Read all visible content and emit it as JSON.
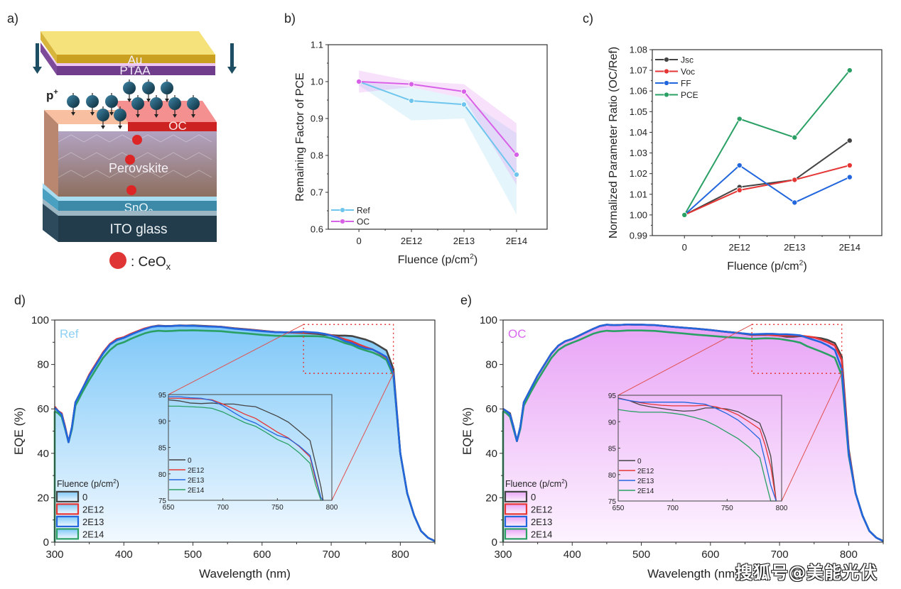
{
  "panels": {
    "a": {
      "label": "a)",
      "layers": {
        "au": "Au",
        "ptaa": "PTAA",
        "oc": "OC",
        "perovskite": "Perovskite",
        "sno2": "SnO",
        "sno2_sub": "2",
        "ito": "ITO glass"
      },
      "particle_label": "p",
      "particle_sup": "+",
      "legend_text": ": CeO",
      "legend_sub": "x",
      "colors": {
        "au": "#d4aa2a",
        "ptaa": "#6f3d8c",
        "oc": "#cc2222",
        "perovskite": "#8e7d8f",
        "sno2": "#3d8aa8",
        "ito": "#233c4c",
        "particle": "#1d4e63",
        "ceox": "#e03030"
      }
    },
    "b": {
      "label": "b)"
    },
    "c": {
      "label": "c)"
    },
    "d": {
      "label": "d)"
    },
    "e": {
      "label": "e)"
    }
  },
  "watermark": "搜狐号@美能光伏",
  "chart_data": [
    {
      "id": "b",
      "type": "line",
      "title": "",
      "xlabel": "Fluence (p/cm²)",
      "ylabel": "Remaining Factor of PCE",
      "categories": [
        "0",
        "2E12",
        "2E13",
        "2E14"
      ],
      "ylim": [
        0.6,
        1.1
      ],
      "yticks": [
        0.6,
        0.7,
        0.8,
        0.9,
        1.0,
        1.1
      ],
      "ytick_labels": [
        "0.6",
        "0.7",
        "0.8",
        "0.9",
        "1.0",
        "1.1"
      ],
      "legend": "bottom-left",
      "series": [
        {
          "name": "Ref",
          "color": "#6ec6ee",
          "values": [
            1.0,
            0.948,
            0.938,
            0.748
          ],
          "band_low": [
            0.99,
            0.895,
            0.9,
            0.64
          ],
          "band_high": [
            1.0,
            0.985,
            0.955,
            0.86
          ]
        },
        {
          "name": "OC",
          "color": "#d860e8",
          "values": [
            1.0,
            0.993,
            0.973,
            0.802
          ],
          "band_low": [
            0.97,
            0.985,
            0.955,
            0.72
          ],
          "band_high": [
            1.03,
            1.002,
            0.993,
            0.887
          ]
        }
      ]
    },
    {
      "id": "c",
      "type": "line",
      "title": "",
      "xlabel": "Fluence (p/cm²)",
      "ylabel": "Normalized Parameter Ratio (OC/Ref)",
      "categories": [
        "0",
        "2E12",
        "2E13",
        "2E14"
      ],
      "ylim": [
        0.99,
        1.08
      ],
      "yticks": [
        0.99,
        1.0,
        1.01,
        1.02,
        1.03,
        1.04,
        1.05,
        1.06,
        1.07,
        1.08
      ],
      "ytick_labels": [
        "0.99",
        "1.00",
        "1.01",
        "1.02",
        "1.03",
        "1.04",
        "1.05",
        "1.06",
        "1.07",
        "1.08"
      ],
      "legend": "top-left",
      "series": [
        {
          "name": "Jsc",
          "color": "#444444",
          "values": [
            1.0,
            1.0135,
            1.017,
            1.036
          ]
        },
        {
          "name": "Voc",
          "color": "#e53535",
          "values": [
            1.0,
            1.012,
            1.017,
            1.024
          ]
        },
        {
          "name": "FF",
          "color": "#2266dd",
          "values": [
            1.0,
            1.024,
            1.006,
            1.0183
          ]
        },
        {
          "name": "PCE",
          "color": "#2aa065",
          "values": [
            1.0,
            1.0465,
            1.0375,
            1.07
          ]
        }
      ]
    },
    {
      "id": "d",
      "type": "area",
      "title": "Ref",
      "title_color": "#8fd0f5",
      "xlabel": "Wavelength (nm)",
      "ylabel": "EQE (%)",
      "xlim": [
        300,
        850
      ],
      "ylim": [
        0,
        100
      ],
      "xticks": [
        300,
        400,
        500,
        600,
        700,
        800
      ],
      "xtick_labels": [
        "300",
        "400",
        "500",
        "600",
        "700",
        "800"
      ],
      "yticks": [
        0,
        20,
        40,
        60,
        80,
        100
      ],
      "ytick_labels": [
        "0",
        "20",
        "40",
        "60",
        "80",
        "100"
      ],
      "fill_top": "#7ec8f8",
      "fill_bottom": "#f2f9ff",
      "legend_title": "Fluence (p/cm²)",
      "legend": "bottom-left",
      "x": [
        300,
        305,
        310,
        315,
        320,
        325,
        330,
        340,
        350,
        360,
        370,
        380,
        390,
        400,
        410,
        420,
        430,
        440,
        450,
        460,
        470,
        480,
        490,
        500,
        520,
        540,
        560,
        580,
        600,
        620,
        640,
        660,
        680,
        690,
        700,
        710,
        720,
        730,
        740,
        750,
        760,
        770,
        780,
        790,
        800,
        810,
        820,
        830,
        840,
        850
      ],
      "series": [
        {
          "name": "0",
          "color": "#444444",
          "values": [
            61,
            59,
            58,
            52,
            45,
            52,
            63,
            69,
            75,
            80,
            85,
            89,
            91,
            92,
            93.5,
            94.8,
            96,
            97,
            97.5,
            97.3,
            97.4,
            97.6,
            97.5,
            97.6,
            97.3,
            97,
            96.3,
            95.8,
            95.2,
            94.6,
            94.4,
            94.2,
            93.8,
            93.4,
            93.2,
            93,
            93,
            92.8,
            92,
            91.2,
            90,
            88.2,
            86.3,
            78,
            40,
            22,
            12,
            5,
            2,
            0.5
          ]
        },
        {
          "name": "2E12",
          "color": "#e53535",
          "values": [
            61,
            59,
            58,
            52,
            45,
            52,
            63,
            69,
            75.5,
            80.5,
            85.5,
            89.3,
            91.5,
            92.3,
            93.8,
            95,
            96.2,
            97,
            97.4,
            97.2,
            97.3,
            97.5,
            97.4,
            97.4,
            97.2,
            97,
            96.2,
            95.7,
            95.1,
            94.6,
            94.4,
            94.4,
            94.2,
            93.8,
            93.2,
            92.3,
            91.3,
            90.4,
            89,
            87.8,
            86.8,
            85,
            83,
            76,
            40,
            22,
            12,
            5,
            2,
            0.5
          ]
        },
        {
          "name": "2E13",
          "color": "#2266dd",
          "values": [
            60.5,
            59,
            57.5,
            51.5,
            45,
            52,
            63,
            69,
            75,
            80,
            85,
            89,
            91,
            92,
            93.4,
            94.7,
            95.9,
            96.9,
            97.3,
            97.2,
            97.3,
            97.5,
            97.4,
            97.4,
            97.1,
            96.9,
            96.1,
            95.6,
            95,
            94.5,
            94.5,
            94.7,
            94.3,
            93.8,
            93,
            92,
            90.5,
            89.6,
            88.2,
            87.2,
            86.7,
            85.2,
            83.4,
            76,
            40,
            22,
            12,
            5,
            2,
            0.5
          ]
        },
        {
          "name": "2E14",
          "color": "#2aa065",
          "values": [
            59,
            58,
            56.5,
            51,
            45,
            51,
            61.5,
            67.5,
            73,
            78,
            83,
            86.5,
            89,
            90,
            91.5,
            92.8,
            94,
            94.8,
            95.2,
            95,
            95.1,
            95.3,
            95.3,
            95.4,
            95.2,
            95,
            94.4,
            93.9,
            93.3,
            92.9,
            92.7,
            92.8,
            92.7,
            92.5,
            91.8,
            90.8,
            89.6,
            88.8,
            87.3,
            86.3,
            85.4,
            84,
            82,
            75,
            40,
            22,
            12,
            5,
            2,
            0.5
          ]
        }
      ],
      "zoom_box": {
        "x": [
          660,
          790
        ],
        "y": [
          76,
          98
        ]
      },
      "inset": {
        "xlim": [
          650,
          800
        ],
        "ylim": [
          75,
          95
        ],
        "xticks": [
          650,
          700,
          750,
          800
        ],
        "xtick_labels": [
          "650",
          "700",
          "750",
          "800"
        ],
        "yticks": [
          75,
          80,
          85,
          90,
          95
        ],
        "ytick_labels": [
          "75",
          "80",
          "85",
          "90",
          "95"
        ],
        "x": [
          650,
          660,
          670,
          680,
          690,
          700,
          710,
          720,
          730,
          740,
          750,
          760,
          770,
          780,
          785,
          790,
          792
        ],
        "series": [
          {
            "name": "0",
            "values": [
              94,
              93.8,
              93.4,
              93.3,
              93.4,
              93.2,
              93.2,
              92.9,
              92.7,
              91.8,
              90.9,
              89.8,
              88.1,
              86.3,
              82,
              77.5,
              75
            ]
          },
          {
            "name": "2E12",
            "values": [
              94.3,
              94.3,
              94.2,
              94.2,
              94,
              93.2,
              92.3,
              91.3,
              90.5,
              89.2,
              87.9,
              86.8,
              85.2,
              83.2,
              79,
              75.5,
              75
            ]
          },
          {
            "name": "2E13",
            "values": [
              94.6,
              94.6,
              94.4,
              94.3,
              93.9,
              92.9,
              91.6,
              90.4,
              89.6,
              88.4,
              87.3,
              86.7,
              85.3,
              83.5,
              79.5,
              75.5,
              75
            ]
          },
          {
            "name": "2E14",
            "values": [
              92.8,
              92.8,
              92.7,
              92.6,
              92.4,
              91.7,
              90.7,
              89.7,
              89,
              87.8,
              86.5,
              85.6,
              84,
              82,
              78,
              75,
              75
            ]
          }
        ]
      }
    },
    {
      "id": "e",
      "type": "area",
      "title": "OC",
      "title_color": "#d868ee",
      "xlabel": "Wavelength (nm)",
      "ylabel": "EQE (%)",
      "xlim": [
        300,
        850
      ],
      "ylim": [
        0,
        100
      ],
      "xticks": [
        300,
        400,
        500,
        600,
        700,
        800
      ],
      "xtick_labels": [
        "300",
        "400",
        "500",
        "600",
        "700",
        "800"
      ],
      "yticks": [
        0,
        20,
        40,
        60,
        80,
        100
      ],
      "ytick_labels": [
        "0",
        "20",
        "40",
        "60",
        "80",
        "100"
      ],
      "fill_top": "#e8a4f6",
      "fill_bottom": "#fdf3ff",
      "legend_title": "Fluence (p/cm²)",
      "legend": "bottom-left",
      "x": [
        300,
        305,
        310,
        315,
        320,
        325,
        330,
        340,
        350,
        360,
        370,
        380,
        390,
        400,
        410,
        420,
        430,
        440,
        450,
        460,
        470,
        480,
        490,
        500,
        520,
        540,
        560,
        580,
        600,
        620,
        640,
        660,
        680,
        690,
        700,
        710,
        720,
        730,
        740,
        750,
        760,
        770,
        780,
        790,
        800,
        810,
        820,
        830,
        840,
        850
      ],
      "series": [
        {
          "name": "0",
          "color": "#444444",
          "values": [
            60,
            59,
            58,
            52,
            45.5,
            52,
            63,
            69,
            75,
            80,
            85,
            88.5,
            90.5,
            91.5,
            93,
            94.5,
            96,
            97.3,
            97.9,
            97.7,
            97.8,
            98,
            97.9,
            97.9,
            97.7,
            97.1,
            96.6,
            96.1,
            95.5,
            94.8,
            94.2,
            93.3,
            93.4,
            93.3,
            93,
            92.5,
            92.5,
            92.8,
            92.5,
            92.2,
            91.8,
            91,
            89.6,
            83.5,
            42,
            22,
            12,
            5,
            2,
            0.5
          ]
        },
        {
          "name": "2E12",
          "color": "#e53535",
          "values": [
            60,
            59,
            57.5,
            52,
            45.5,
            52,
            63,
            69,
            75,
            80,
            85,
            88.5,
            90.5,
            91.5,
            93,
            94.5,
            96,
            97.3,
            97.9,
            97.7,
            97.8,
            98,
            97.9,
            97.9,
            97.7,
            97.1,
            96.6,
            96.1,
            95.5,
            94.8,
            94.2,
            93.5,
            93.5,
            93.2,
            93,
            93,
            93,
            93,
            92.6,
            92.2,
            91.2,
            90,
            88.5,
            82,
            41,
            22,
            12,
            5,
            2,
            0.5
          ]
        },
        {
          "name": "2E13",
          "color": "#2266dd",
          "values": [
            60,
            59,
            57.5,
            52,
            45.5,
            52,
            63,
            69,
            75,
            80,
            85,
            88.5,
            90.5,
            91.5,
            93,
            94.5,
            96,
            97.3,
            97.9,
            97.7,
            97.8,
            98,
            97.9,
            97.9,
            97.7,
            97.1,
            96.6,
            96.1,
            95.5,
            94.8,
            94.2,
            93.6,
            93.8,
            93.8,
            93.6,
            93.6,
            93.4,
            93.1,
            92,
            91,
            90,
            88.5,
            86.5,
            78,
            40,
            22,
            12,
            5,
            2,
            0.5
          ]
        },
        {
          "name": "2E14",
          "color": "#2aa065",
          "values": [
            59,
            58,
            56.5,
            51,
            45.5,
            51,
            61.5,
            67.5,
            73,
            78,
            83,
            86.5,
            88.5,
            89.8,
            91,
            92.4,
            93.8,
            94.7,
            95.2,
            95,
            95.1,
            95.3,
            95.3,
            95.3,
            95.1,
            94.5,
            94,
            93.4,
            92.9,
            92.4,
            92,
            91.5,
            91.8,
            91.7,
            91.5,
            91,
            90.5,
            89.8,
            88.2,
            87,
            85.8,
            84.5,
            83,
            75,
            39,
            22,
            12,
            5,
            2,
            0.5
          ]
        }
      ],
      "zoom_box": {
        "x": [
          660,
          790
        ],
        "y": [
          76,
          98
        ]
      },
      "inset": {
        "xlim": [
          650,
          800
        ],
        "ylim": [
          75,
          95
        ],
        "xticks": [
          650,
          700,
          750,
          800
        ],
        "xtick_labels": [
          "650",
          "700",
          "750",
          "800"
        ],
        "yticks": [
          75,
          80,
          85,
          90,
          95
        ],
        "ytick_labels": [
          "75",
          "80",
          "85",
          "90",
          "95"
        ],
        "x": [
          650,
          660,
          670,
          680,
          690,
          700,
          710,
          720,
          730,
          740,
          750,
          760,
          770,
          780,
          785,
          790,
          795
        ],
        "series": [
          {
            "name": "0",
            "values": [
              94.5,
              94,
              93.2,
              92.8,
              92.5,
              92.2,
              92,
              92.1,
              92.6,
              92.6,
              92.4,
              91.9,
              90.8,
              89.7,
              87,
              83.5,
              75
            ]
          },
          {
            "name": "2E12",
            "values": [
              94.5,
              94,
              93.6,
              93.3,
              93.1,
              93,
              93,
              93,
              93.1,
              92.8,
              92.2,
              91.3,
              90,
              88.6,
              85.5,
              81.5,
              75
            ]
          },
          {
            "name": "2E13",
            "values": [
              94.4,
              94,
              93.7,
              93.7,
              93.7,
              93.7,
              93.7,
              93.5,
              93.3,
              92.5,
              91.5,
              90.3,
              88.6,
              86.7,
              82.5,
              78,
              75
            ]
          },
          {
            "name": "2E14",
            "values": [
              92.3,
              92,
              91.8,
              91.8,
              91.8,
              91.6,
              91.3,
              90.8,
              90.2,
              89.2,
              88,
              86.8,
              85.2,
              83.2,
              79,
              75,
              75
            ]
          }
        ]
      }
    }
  ]
}
